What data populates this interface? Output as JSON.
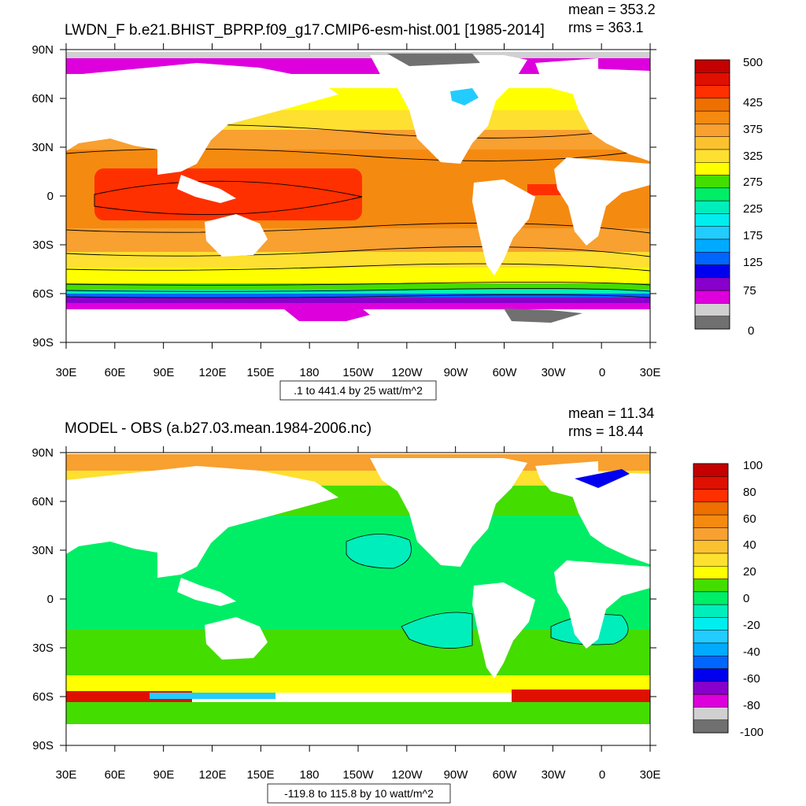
{
  "panels": [
    {
      "id": "top",
      "title": "LWDN_F b.e21.BHIST_BPRP.f09_g17.CMIP6-esm-hist.001 [1985-2014]",
      "mean_label": "mean = 353.2",
      "rms_label": "rms = 363.1",
      "subtitle": ".1 to 441.4 by 25 watt/m^2",
      "colorbar": {
        "labels": [
          "500",
          "425",
          "375",
          "325",
          "275",
          "225",
          "175",
          "125",
          "75",
          "0"
        ],
        "colors": [
          "#c40000",
          "#e01000",
          "#ff3000",
          "#ee7000",
          "#f58a10",
          "#f8a030",
          "#fbc230",
          "#fde030",
          "#ffff00",
          "#44dd00",
          "#00ee66",
          "#00eebb",
          "#00eeee",
          "#22ccff",
          "#00aaff",
          "#0066ff",
          "#0000ee",
          "#8800cc",
          "#dd00dd",
          "#d0d0d0",
          "#707070"
        ]
      },
      "zones": [
        {
          "name": "arctic-gray",
          "color": "#d0d0d0"
        },
        {
          "name": "arctic-magenta",
          "color": "#dd00dd"
        },
        {
          "name": "north-yellow",
          "color": "#ffff00"
        },
        {
          "name": "north-gold",
          "color": "#fde030"
        },
        {
          "name": "north-orange",
          "color": "#f8a030"
        },
        {
          "name": "subtropic-orange",
          "color": "#f58a10"
        },
        {
          "name": "tropic-red",
          "color": "#ff3000"
        },
        {
          "name": "south-orange",
          "color": "#f8a030"
        },
        {
          "name": "south-gold",
          "color": "#fde030"
        },
        {
          "name": "south-yellow",
          "color": "#ffff00"
        },
        {
          "name": "south-green",
          "color": "#44dd00"
        },
        {
          "name": "south-cyan",
          "color": "#00eebb"
        },
        {
          "name": "south-blue",
          "color": "#0066ff"
        },
        {
          "name": "antarctic-purple",
          "color": "#8800cc"
        },
        {
          "name": "antarctic-magenta",
          "color": "#dd00dd"
        }
      ]
    },
    {
      "id": "bottom",
      "title": "MODEL - OBS (a.b27.03.mean.1984-2006.nc)",
      "mean_label": "mean = 11.34",
      "rms_label": "rms = 18.44",
      "subtitle": "-119.8 to 115.8 by 10 watt/m^2",
      "colorbar": {
        "labels": [
          "100",
          "80",
          "60",
          "40",
          "20",
          "0",
          "-20",
          "-40",
          "-60",
          "-80",
          "-100"
        ],
        "colors": [
          "#c40000",
          "#e01000",
          "#ff3000",
          "#ee7000",
          "#f58a10",
          "#f8a030",
          "#fbc230",
          "#fde030",
          "#ffff00",
          "#44dd00",
          "#00ee66",
          "#00eebb",
          "#00eeee",
          "#22ccff",
          "#00aaff",
          "#0066ff",
          "#0000ee",
          "#8800cc",
          "#dd00dd",
          "#d0d0d0",
          "#707070"
        ]
      },
      "zones": [
        {
          "name": "arctic-orange",
          "color": "#f8a030"
        },
        {
          "name": "arctic-yellow",
          "color": "#fde030"
        },
        {
          "name": "north-green",
          "color": "#44dd00"
        },
        {
          "name": "mid-green",
          "color": "#00ee66"
        },
        {
          "name": "tropic-green",
          "color": "#00ee66"
        },
        {
          "name": "south-green",
          "color": "#44dd00"
        },
        {
          "name": "south-yellow",
          "color": "#ffff00"
        },
        {
          "name": "south-red",
          "color": "#e01000"
        },
        {
          "name": "antarctic-blue",
          "color": "#22ccff"
        },
        {
          "name": "antarctic-green",
          "color": "#00ee66"
        }
      ]
    }
  ],
  "lat_labels": [
    "90N",
    "60N",
    "30N",
    "0",
    "30S",
    "60S",
    "90S"
  ],
  "lon_labels": [
    "30E",
    "60E",
    "90E",
    "120E",
    "150E",
    "180",
    "150W",
    "120W",
    "90W",
    "60W",
    "30W",
    "0",
    "30E"
  ]
}
